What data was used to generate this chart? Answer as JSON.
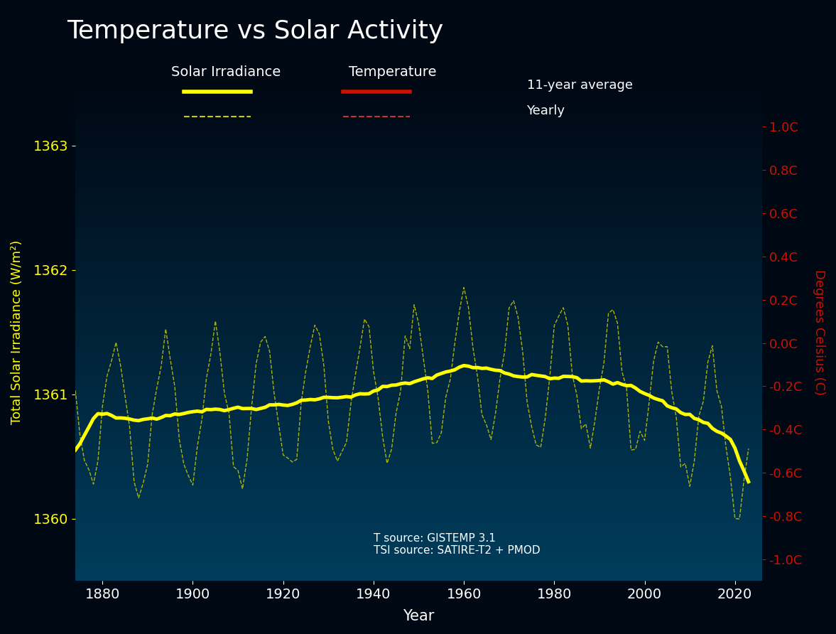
{
  "title": "Temperature vs Solar Activity",
  "xlabel": "Year",
  "ylabel_left": "Total Solar Irradiance (W/m²)",
  "ylabel_right": "Degrees Celsius (C)",
  "background_top": "#000814",
  "background_bottom": "#004060",
  "title_color": "#ffffff",
  "tick_color_left": "#ffff00",
  "tick_color_right": "#cc2200",
  "annotation_text": "T source: GISTEMP 3.1\nTSI source: SATIRE-T2 + PMOD",
  "annotation_color": "#ffffff",
  "xlim": [
    1874,
    2026
  ],
  "ylim_left": [
    1359.5,
    1363.5
  ],
  "ylim_right": [
    -1.1,
    1.2
  ],
  "yticks_left": [
    1360,
    1361,
    1362,
    1363
  ],
  "yticks_right": [
    -1.0,
    -0.8,
    -0.6,
    -0.4,
    -0.2,
    0.0,
    0.2,
    0.4,
    0.6,
    0.8,
    1.0
  ],
  "xticks": [
    1880,
    1900,
    1920,
    1940,
    1960,
    1980,
    2000,
    2020
  ],
  "solar_smooth_color": "#ffff00",
  "solar_yearly_color": "#cccc00",
  "temp_smooth_color": "#cc1100",
  "temp_yearly_color": "#cc3333",
  "solar_smooth_lw": 3.5,
  "solar_yearly_lw": 1.0,
  "temp_smooth_lw": 4.0,
  "temp_yearly_lw": 1.2
}
